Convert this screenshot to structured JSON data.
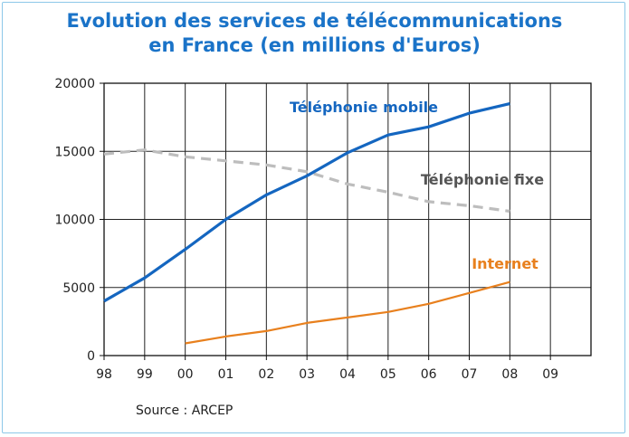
{
  "title_lines": [
    "Evolution des services de télécommunications",
    "en France (en millions d'Euros)"
  ],
  "source": "Source : ARCEP",
  "colors": {
    "title": "#1a73c8",
    "mobile": "#1466c0",
    "fixe": "#bdbdbd",
    "internet": "#e8801e",
    "fixe_label": "#555555",
    "frame": "#8cc8e8"
  },
  "chart_data": {
    "type": "line",
    "title": "Evolution des services de télécommunications en France (en millions d'Euros)",
    "xlabel": "",
    "ylabel": "",
    "x": [
      "98",
      "99",
      "00",
      "01",
      "02",
      "03",
      "04",
      "05",
      "06",
      "07",
      "08",
      "09"
    ],
    "ylim": [
      0,
      20000
    ],
    "yticks": [
      0,
      5000,
      10000,
      15000,
      20000
    ],
    "grid": true,
    "legend": "inline labels",
    "series": [
      {
        "name": "Téléphonie mobile",
        "key": "mobile",
        "style": "solid",
        "values": [
          4000,
          5700,
          7800,
          10000,
          11800,
          13200,
          14900,
          16200,
          16800,
          17800,
          18500,
          null
        ]
      },
      {
        "name": "Téléphonie fixe",
        "key": "fixe",
        "style": "dashed",
        "values": [
          14800,
          15100,
          14600,
          14300,
          14000,
          13500,
          12600,
          12000,
          11300,
          11000,
          10600,
          null
        ]
      },
      {
        "name": "Internet",
        "key": "internet",
        "style": "solid",
        "values": [
          null,
          null,
          900,
          1400,
          1800,
          2400,
          2800,
          3200,
          3800,
          4600,
          5400,
          null
        ]
      }
    ]
  }
}
